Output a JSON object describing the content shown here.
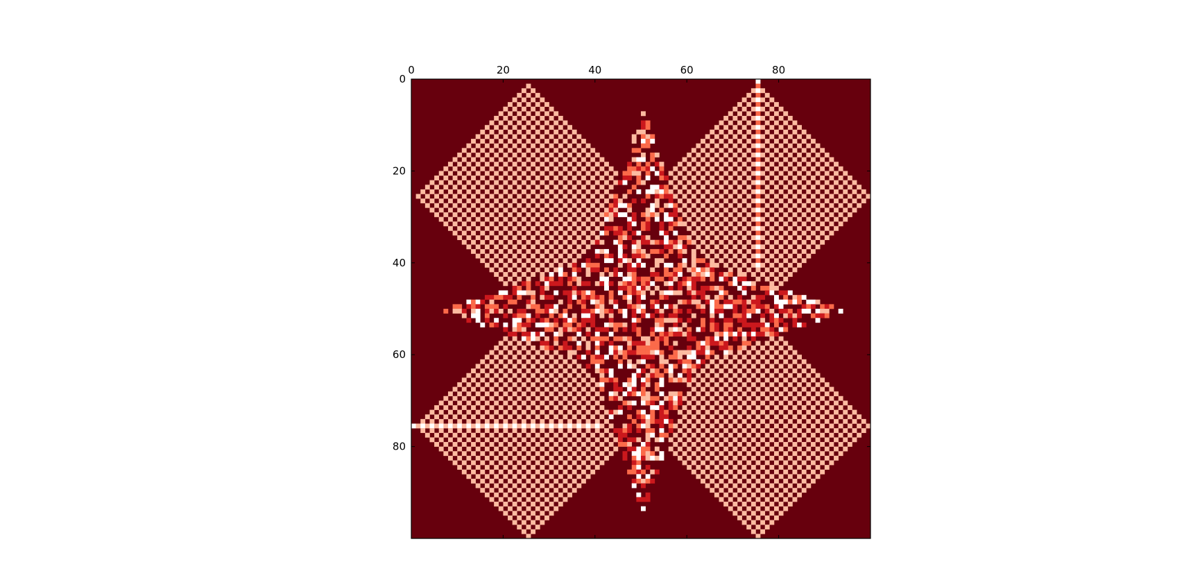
{
  "chart_data": {
    "type": "heatmap",
    "title": "",
    "xlabel": "",
    "ylabel": "",
    "grid_size": [
      100,
      100
    ],
    "x_ticks": [
      0,
      20,
      40,
      60,
      80
    ],
    "y_ticks": [
      0,
      20,
      40,
      60,
      80
    ],
    "x_tick_labels": [
      "0",
      "20",
      "40",
      "60",
      "80"
    ],
    "y_tick_labels": [
      "0",
      "20",
      "40",
      "60",
      "80"
    ],
    "xlim": [
      0,
      100
    ],
    "ylim": [
      0,
      100
    ],
    "x_axis_position": "top",
    "y_axis_inverted": true,
    "colormap": "Reds",
    "value_range": [
      0,
      4
    ],
    "palette": [
      "#ffffff",
      "#fcbba1",
      "#fb6a4a",
      "#cb181d",
      "#67000d"
    ],
    "pattern": "sandpile-like: four checkerboard diamonds centered at (25,25), (75,25), (25,75), (75,75) with radius 25, a central cross-shaped fractal of mixed values around (50,50), background value 4",
    "diamond_centers": [
      [
        25,
        25
      ],
      [
        75,
        25
      ],
      [
        25,
        75
      ],
      [
        75,
        75
      ]
    ],
    "diamond_radius": 25,
    "highlight_lines": [
      {
        "orientation": "vertical",
        "at": 75,
        "from": 0,
        "to": 40
      },
      {
        "orientation": "horizontal",
        "at": 75,
        "from": 0,
        "to": 40
      }
    ]
  }
}
